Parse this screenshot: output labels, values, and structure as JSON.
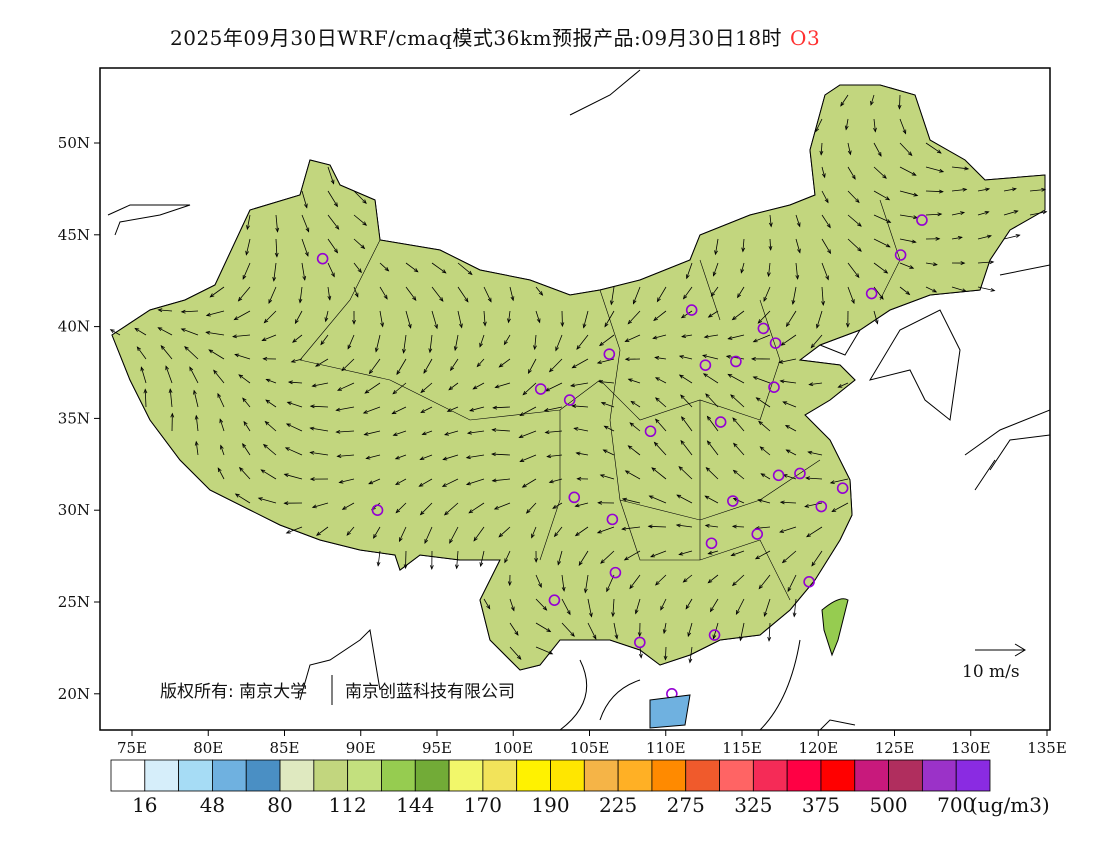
{
  "title": {
    "main": "2025年09月30日WRF/cmaq模式36km预报产品:09月30日18时",
    "species": "O3"
  },
  "map": {
    "lon_ticks": [
      "75E",
      "80E",
      "85E",
      "90E",
      "95E",
      "100E",
      "105E",
      "110E",
      "115E",
      "120E",
      "125E",
      "130E",
      "135E"
    ],
    "lat_ticks": [
      "50N",
      "45N",
      "40N",
      "35N",
      "30N",
      "25N",
      "20N"
    ],
    "lon_range": [
      73,
      135
    ],
    "lat_range": [
      18,
      54
    ],
    "copyright": "版权所有: 南京大学",
    "copyright2": "南京创蓝科技有限公司",
    "wind_reference": "10 m/s",
    "stations": [
      [
        87.5,
        43.7
      ],
      [
        91.1,
        30.0
      ],
      [
        101.8,
        36.6
      ],
      [
        103.7,
        36.0
      ],
      [
        104.0,
        30.7
      ],
      [
        106.3,
        38.5
      ],
      [
        106.5,
        29.5
      ],
      [
        106.7,
        26.6
      ],
      [
        102.7,
        25.1
      ],
      [
        108.3,
        22.8
      ],
      [
        109.0,
        34.3
      ],
      [
        110.4,
        20.0
      ],
      [
        111.7,
        40.9
      ],
      [
        112.6,
        37.9
      ],
      [
        113.6,
        34.8
      ],
      [
        113.0,
        28.2
      ],
      [
        113.2,
        23.2
      ],
      [
        114.4,
        30.5
      ],
      [
        114.6,
        38.1
      ],
      [
        116.0,
        28.7
      ],
      [
        116.4,
        39.9
      ],
      [
        117.2,
        39.1
      ],
      [
        117.1,
        36.7
      ],
      [
        117.4,
        31.9
      ],
      [
        118.8,
        32.0
      ],
      [
        119.4,
        26.1
      ],
      [
        120.2,
        30.2
      ],
      [
        121.6,
        31.2
      ],
      [
        123.5,
        41.8
      ],
      [
        125.4,
        43.9
      ],
      [
        126.8,
        45.8
      ]
    ]
  },
  "colorbar": {
    "colors": [
      "#ffffff",
      "#d6eefa",
      "#a6dcf5",
      "#6fb1e0",
      "#4a8fc4",
      "#dfe9c0",
      "#c2d67e",
      "#c3e07e",
      "#96cc50",
      "#72ab37",
      "#f2f76a",
      "#f2e35a",
      "#fff200",
      "#ffe600",
      "#f5b447",
      "#ffb025",
      "#ff8a00",
      "#f05a2c",
      "#ff6464",
      "#f52b57",
      "#ff0044",
      "#ff0000",
      "#c8197c",
      "#b02e5e",
      "#9b32c8",
      "#8a2be2"
    ],
    "labels": [
      "16",
      "48",
      "80",
      "112",
      "144",
      "170",
      "190",
      "225",
      "275",
      "325",
      "375",
      "500",
      "700"
    ],
    "unit": "(ug/m3)"
  }
}
